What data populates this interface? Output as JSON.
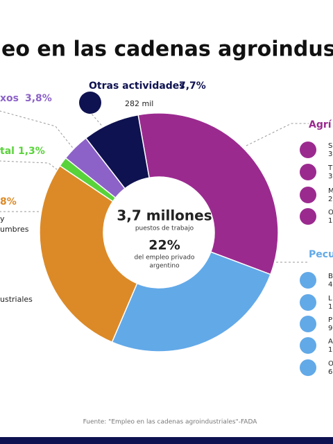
{
  "chart_data": {
    "type": "donut",
    "title": "eo en las cadenas agroindustri",
    "categories": [
      "Agrí",
      "Pecu",
      null,
      "tal",
      "xos",
      "Otras actividades"
    ],
    "values": [
      33.5,
      25.7,
      28,
      1.3,
      3.8,
      7.7
    ],
    "value_labels": [
      null,
      null,
      null,
      "1,3%",
      "3,8%",
      "7,7%"
    ],
    "colors": [
      "#9b2a8f",
      "#62a9e8",
      "#dc8a27",
      "#59d33a",
      "#8c62c8",
      "#0f1250"
    ],
    "center_text": [
      "3,7 millones",
      "puestos de trabajo",
      "22%",
      "del empleo privado",
      "argentino"
    ],
    "annotations": [
      "282 mil",
      "8%",
      "y",
      "umbres",
      "ustriales"
    ],
    "agricola_items": [
      [
        "S",
        "3"
      ],
      [
        "T",
        "3"
      ],
      [
        "M",
        "2"
      ],
      [
        "O",
        "1"
      ]
    ],
    "pecuaria_items": [
      [
        "B",
        "4"
      ],
      [
        "L",
        "1"
      ],
      [
        "P",
        "9"
      ],
      [
        "A",
        "1"
      ],
      [
        "O",
        "6"
      ]
    ],
    "source": "Fuente: \"Empleo en las cadenas agroindustriales\"-FADA"
  }
}
